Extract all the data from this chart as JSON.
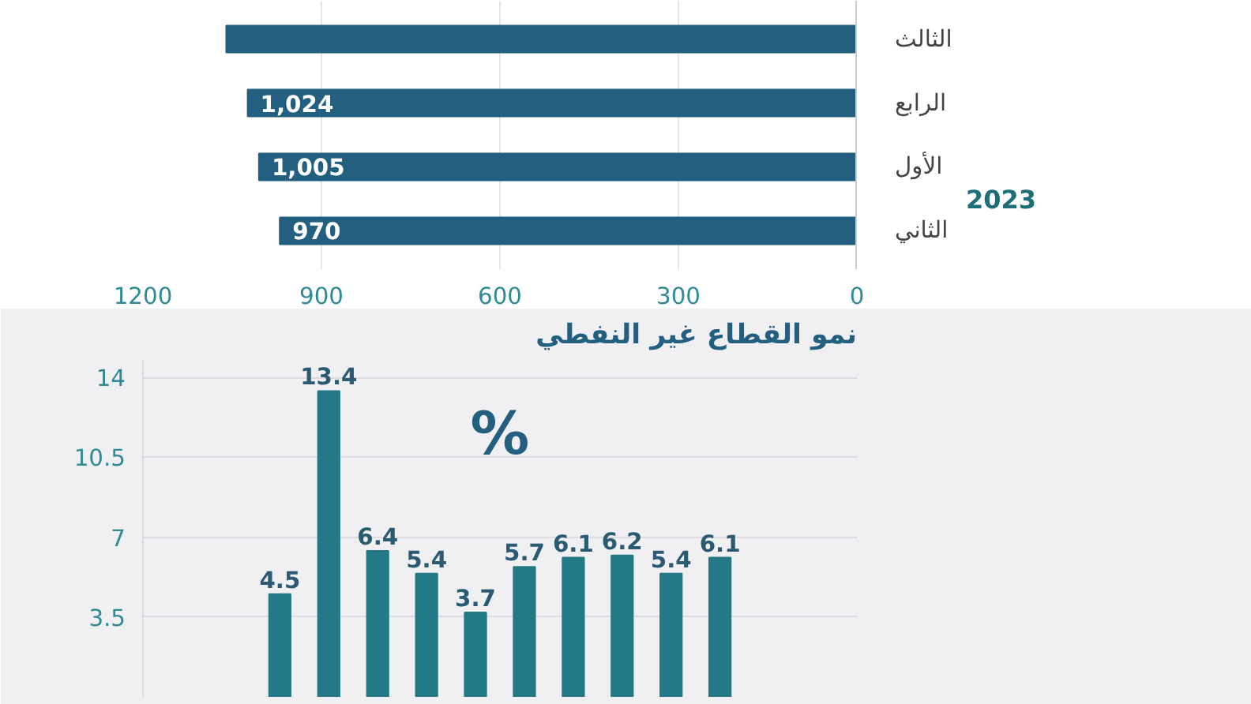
{
  "chart_data": [
    {
      "type": "bar",
      "orientation": "horizontal",
      "categories": [
        "الثالث",
        "الرابع",
        "الأول",
        "الثاني"
      ],
      "values": [
        1060,
        1024,
        1005,
        970
      ],
      "color": "#235f7f",
      "value_labels": [
        null,
        "1,024",
        "1,005",
        "970"
      ],
      "xlim": [
        1200,
        0
      ],
      "xticks": [
        {
          "value": 1200,
          "label": "1200"
        },
        {
          "value": 900,
          "label": "900"
        },
        {
          "value": 600,
          "label": "600"
        },
        {
          "value": 300,
          "label": "300"
        },
        {
          "value": 0,
          "label": "0"
        }
      ],
      "grid": "x",
      "annotations": [
        "2023"
      ]
    },
    {
      "type": "bar",
      "title": "نمو القطاع غير النفطي",
      "categories": [
        null,
        null,
        null,
        null,
        null,
        null,
        null,
        null,
        null,
        null,
        null,
        null,
        null,
        null
      ],
      "values": [
        null,
        null,
        4.5,
        13.4,
        6.4,
        5.4,
        3.7,
        5.7,
        6.1,
        6.2,
        5.4,
        6.1,
        null,
        null
      ],
      "color": "#237985",
      "data_labels": true,
      "ylim": [
        0,
        14.8
      ],
      "yticks": [
        3.5,
        7,
        10.5,
        14
      ],
      "grid": "y",
      "tick_labels": "y",
      "annotations": [
        "%"
      ]
    }
  ]
}
